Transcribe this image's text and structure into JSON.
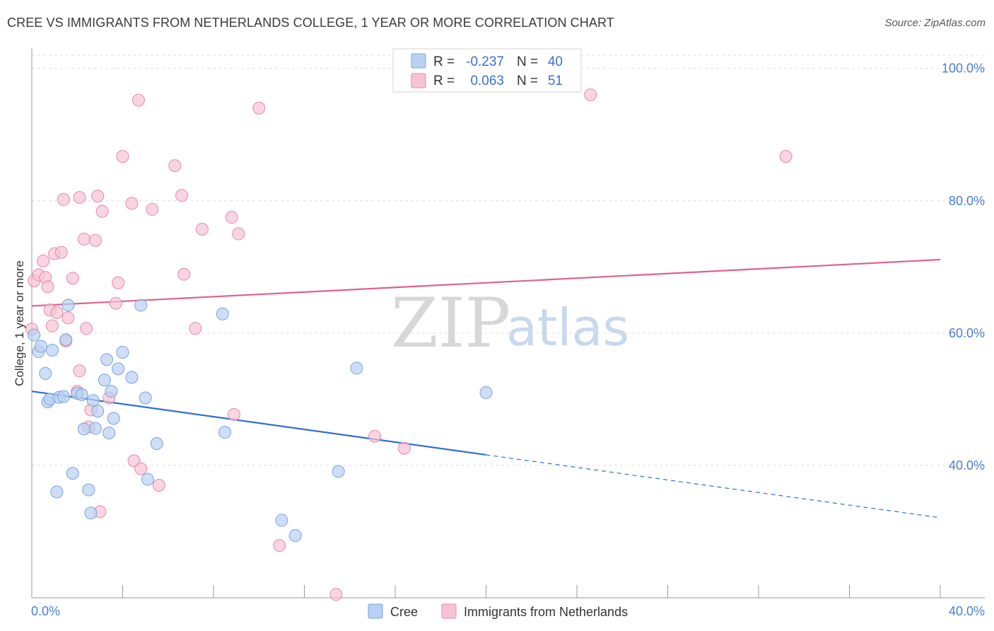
{
  "title": "CREE VS IMMIGRANTS FROM NETHERLANDS COLLEGE, 1 YEAR OR MORE CORRELATION CHART",
  "source": "Source: ZipAtlas.com",
  "watermark": {
    "zip": "ZIP",
    "atlas": "atlas"
  },
  "colors": {
    "blue_fill": "#b8d0f2",
    "blue_stroke": "#7aa3df",
    "blue_line": "#2f6fd0",
    "pink_fill": "#f7c3d3",
    "pink_stroke": "#e68aa8",
    "pink_line": "#e0628a",
    "grid": "#dddddd",
    "axis": "#999999"
  },
  "legend": {
    "row1": {
      "r_label": "R =",
      "r_value": "-0.237",
      "n_label": "N =",
      "n_value": "40"
    },
    "row2": {
      "r_label": "R =",
      "r_value": "0.063",
      "n_label": "N =",
      "n_value": "51"
    }
  },
  "chart_data": {
    "type": "scatter",
    "title": "CREE VS IMMIGRANTS FROM NETHERLANDS COLLEGE, 1 YEAR OR MORE CORRELATION CHART",
    "xlabel": "",
    "ylabel": "College, 1 year or more",
    "xlim": [
      0,
      40
    ],
    "ylim": [
      20,
      102
    ],
    "x_tick_labels": [
      "0.0%",
      "40.0%"
    ],
    "y_ticks": [
      40,
      60,
      80,
      100
    ],
    "y_tick_labels": [
      "40.0%",
      "60.0%",
      "80.0%",
      "100.0%"
    ],
    "grid": true,
    "legend_position": "bottom-center",
    "series": [
      {
        "name": "Cree",
        "color": "#b8d0f2",
        "r": -0.237,
        "n": 40,
        "trend": {
          "x0": 0,
          "y0": 51.2,
          "x1": 20,
          "y1": 41.6,
          "dashed_to_x": 40,
          "dashed_to_y": 32.1
        },
        "points": [
          [
            0.1,
            59.7
          ],
          [
            0.3,
            57.2
          ],
          [
            0.4,
            58.0
          ],
          [
            0.6,
            53.9
          ],
          [
            0.7,
            49.6
          ],
          [
            0.8,
            50.0
          ],
          [
            0.9,
            57.4
          ],
          [
            1.1,
            36.0
          ],
          [
            1.2,
            50.3
          ],
          [
            1.4,
            50.4
          ],
          [
            1.5,
            59.0
          ],
          [
            1.6,
            64.2
          ],
          [
            1.8,
            38.8
          ],
          [
            2.0,
            50.9
          ],
          [
            2.2,
            50.7
          ],
          [
            2.3,
            45.5
          ],
          [
            2.5,
            36.3
          ],
          [
            2.6,
            32.8
          ],
          [
            2.7,
            49.8
          ],
          [
            2.8,
            45.6
          ],
          [
            2.9,
            48.2
          ],
          [
            3.2,
            52.9
          ],
          [
            3.3,
            56.0
          ],
          [
            3.4,
            44.9
          ],
          [
            3.5,
            51.2
          ],
          [
            3.6,
            47.1
          ],
          [
            3.8,
            54.6
          ],
          [
            4.0,
            57.1
          ],
          [
            4.4,
            53.3
          ],
          [
            4.8,
            64.2
          ],
          [
            5.0,
            50.2
          ],
          [
            5.1,
            37.9
          ],
          [
            5.5,
            43.3
          ],
          [
            8.4,
            62.9
          ],
          [
            8.5,
            45.0
          ],
          [
            11.0,
            31.7
          ],
          [
            11.6,
            29.4
          ],
          [
            13.5,
            39.1
          ],
          [
            14.3,
            54.7
          ],
          [
            20.0,
            51.0
          ]
        ]
      },
      {
        "name": "Immigrants from Netherlands",
        "color": "#f7c3d3",
        "r": 0.063,
        "n": 51,
        "trend": {
          "x0": 0,
          "y0": 64.1,
          "x1": 40,
          "y1": 71.1
        },
        "points": [
          [
            0.0,
            60.6
          ],
          [
            0.1,
            67.9
          ],
          [
            0.3,
            68.8
          ],
          [
            0.5,
            70.9
          ],
          [
            0.6,
            68.4
          ],
          [
            0.7,
            67.0
          ],
          [
            0.8,
            63.5
          ],
          [
            0.9,
            61.1
          ],
          [
            1.0,
            72.0
          ],
          [
            1.1,
            63.1
          ],
          [
            1.3,
            72.2
          ],
          [
            1.4,
            80.2
          ],
          [
            1.5,
            58.8
          ],
          [
            1.6,
            62.3
          ],
          [
            1.8,
            68.3
          ],
          [
            2.0,
            51.2
          ],
          [
            2.1,
            54.3
          ],
          [
            2.1,
            80.5
          ],
          [
            2.3,
            74.2
          ],
          [
            2.4,
            60.7
          ],
          [
            2.5,
            45.8
          ],
          [
            2.6,
            48.4
          ],
          [
            2.8,
            74.0
          ],
          [
            2.9,
            80.7
          ],
          [
            3.0,
            33.0
          ],
          [
            3.1,
            78.4
          ],
          [
            3.4,
            50.2
          ],
          [
            3.7,
            64.5
          ],
          [
            3.8,
            67.6
          ],
          [
            4.0,
            86.7
          ],
          [
            4.4,
            79.6
          ],
          [
            4.5,
            40.7
          ],
          [
            4.7,
            95.2
          ],
          [
            4.8,
            39.5
          ],
          [
            5.3,
            78.7
          ],
          [
            5.6,
            37.0
          ],
          [
            6.3,
            85.3
          ],
          [
            6.6,
            80.8
          ],
          [
            6.7,
            68.9
          ],
          [
            7.2,
            60.7
          ],
          [
            7.5,
            75.7
          ],
          [
            8.8,
            77.5
          ],
          [
            8.9,
            47.7
          ],
          [
            9.1,
            75.0
          ],
          [
            10.0,
            94.0
          ],
          [
            10.9,
            27.9
          ],
          [
            13.4,
            20.5
          ],
          [
            15.1,
            44.4
          ],
          [
            16.4,
            42.6
          ],
          [
            24.6,
            96.0
          ],
          [
            33.2,
            86.7
          ]
        ]
      }
    ]
  },
  "bottom_legend": {
    "cree": "Cree",
    "netherlands": "Immigrants from Netherlands"
  }
}
